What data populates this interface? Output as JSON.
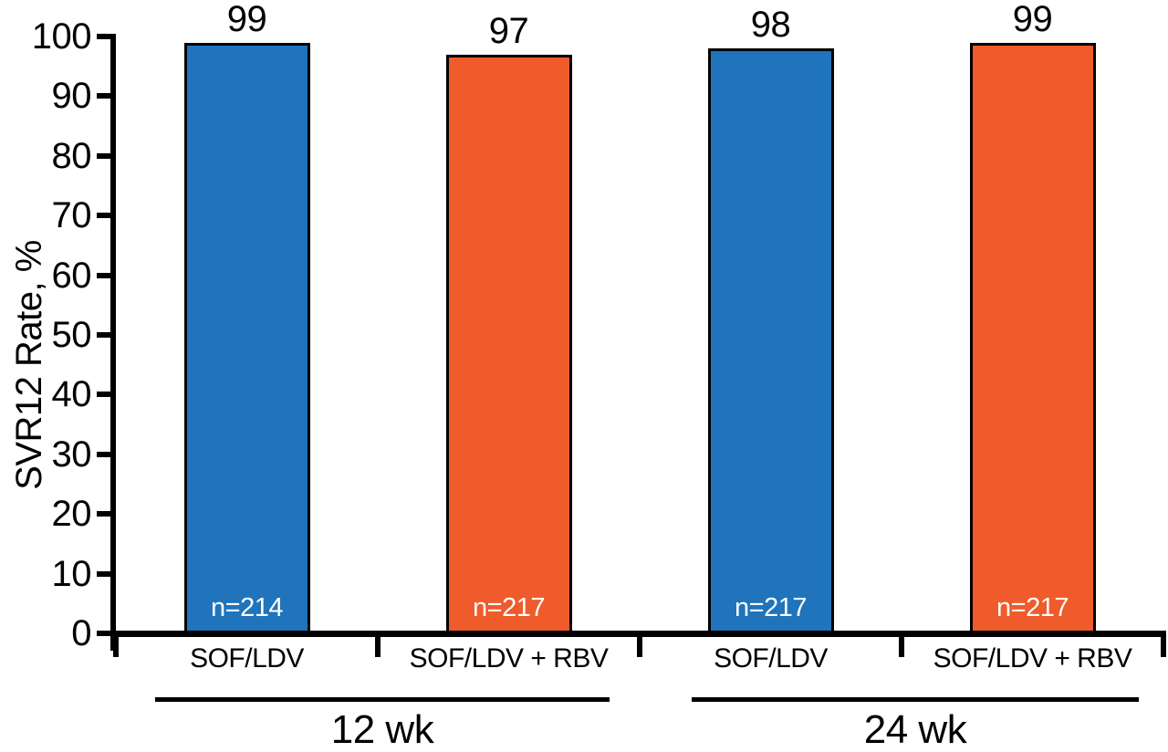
{
  "chart_data": {
    "type": "bar",
    "title": "",
    "ylabel": "SVR12 Rate, %",
    "xlabel": "",
    "ylim": [
      0,
      100
    ],
    "yticks": [
      0,
      10,
      20,
      30,
      40,
      50,
      60,
      70,
      80,
      90,
      100
    ],
    "grid": false,
    "legend": false,
    "axis_color": "#000000",
    "value_label_color": "#000000",
    "n_label_color": "#ffffff",
    "bar_colors": {
      "SOF_LDV": "#1f74bc",
      "SOF_LDV_RBV": "#f05b2b"
    },
    "categories": [
      "SOF/LDV",
      "SOF/LDV + RBV",
      "SOF/LDV",
      "SOF/LDV + RBV"
    ],
    "values": [
      99,
      97,
      98,
      99
    ],
    "groups": [
      {
        "label": "12 wk",
        "bars": [
          {
            "category": "SOF/LDV",
            "value": 99,
            "n_label": "n=214",
            "color": "#1f74bc"
          },
          {
            "category": "SOF/LDV + RBV",
            "value": 97,
            "n_label": "n=217",
            "color": "#f05b2b"
          }
        ]
      },
      {
        "label": "24 wk",
        "bars": [
          {
            "category": "SOF/LDV",
            "value": 98,
            "n_label": "n=217",
            "color": "#1f74bc"
          },
          {
            "category": "SOF/LDV + RBV",
            "value": 99,
            "n_label": "n=217",
            "color": "#f05b2b"
          }
        ]
      }
    ]
  }
}
